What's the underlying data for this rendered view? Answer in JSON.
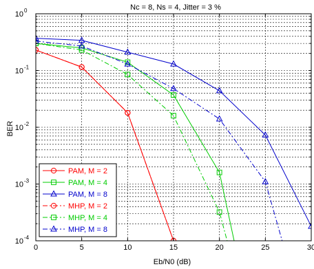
{
  "chart_data": {
    "type": "line",
    "title": "Nc = 8, Ns = 4, Jitter = 3 %",
    "xlabel": "Eb/N0 (dB)",
    "ylabel": "BER",
    "xlim": [
      0,
      30
    ],
    "ylim": [
      0.0001,
      1
    ],
    "y_scale": "log",
    "grid": true,
    "legend_position": "bottom-left",
    "x_ticks": [
      0,
      5,
      10,
      15,
      20,
      25,
      30
    ],
    "y_ticks": [
      {
        "value": 1,
        "base": "10",
        "exp": "0"
      },
      {
        "value": 0.1,
        "base": "10",
        "exp": "-1"
      },
      {
        "value": 0.01,
        "base": "10",
        "exp": "-2"
      },
      {
        "value": 0.001,
        "base": "10",
        "exp": "-3"
      },
      {
        "value": 0.0001,
        "base": "10",
        "exp": "-4"
      }
    ],
    "series": [
      {
        "name": "PAM, M = 2",
        "color": "#ff0000",
        "dash": "solid",
        "marker": "circle",
        "x": [
          0,
          5,
          10,
          15,
          17
        ],
        "y": [
          0.23,
          0.115,
          0.018,
          0.0001,
          2e-05
        ]
      },
      {
        "name": "PAM, M = 4",
        "color": "#00cc00",
        "dash": "solid",
        "marker": "square",
        "x": [
          0,
          5,
          10,
          15,
          20,
          22
        ],
        "y": [
          0.3,
          0.25,
          0.14,
          0.037,
          0.0016,
          5e-05
        ]
      },
      {
        "name": "PAM, M = 8",
        "color": "#0000cc",
        "dash": "solid",
        "marker": "triangle",
        "x": [
          0,
          5,
          10,
          15,
          20,
          25,
          30
        ],
        "y": [
          0.37,
          0.34,
          0.21,
          0.13,
          0.044,
          0.0073,
          0.00018
        ]
      },
      {
        "name": "MHP, M = 2",
        "color": "#ff0000",
        "dash": "dashdot",
        "marker": "circle",
        "x": [
          0,
          5,
          10,
          15,
          17
        ],
        "y": [
          0.23,
          0.115,
          0.018,
          0.0001,
          2e-05
        ]
      },
      {
        "name": "MHP, M = 4",
        "color": "#00cc00",
        "dash": "dashdot",
        "marker": "square",
        "x": [
          0,
          5,
          10,
          15,
          20,
          22
        ],
        "y": [
          0.3,
          0.23,
          0.085,
          0.016,
          0.00032,
          2e-05
        ]
      },
      {
        "name": "MHP, M = 8",
        "color": "#0000cc",
        "dash": "dashdot",
        "marker": "triangle",
        "x": [
          0,
          5,
          10,
          15,
          20,
          25,
          27
        ],
        "y": [
          0.33,
          0.27,
          0.13,
          0.048,
          0.014,
          0.0011,
          8e-05
        ]
      }
    ]
  }
}
